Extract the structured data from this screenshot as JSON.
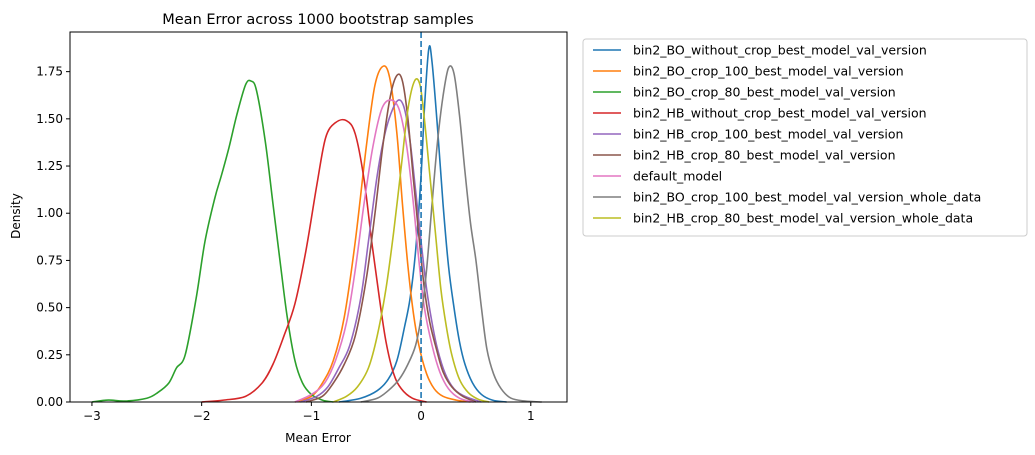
{
  "chart_data": {
    "type": "line",
    "kind": "kde",
    "title": "Mean Error across 1000 bootstrap samples",
    "xlabel": "Mean Error",
    "ylabel": "Density",
    "xlim": [
      -3.2,
      1.33
    ],
    "ylim": [
      0,
      1.96
    ],
    "xticks": [
      -3,
      -2,
      -1,
      0,
      1
    ],
    "xtick_labels": [
      "−3",
      "−2",
      "−1",
      "0",
      "1"
    ],
    "yticks": [
      0,
      0.25,
      0.5,
      0.75,
      1.0,
      1.25,
      1.5,
      1.75
    ],
    "ytick_labels": [
      "0.00",
      "0.25",
      "0.50",
      "0.75",
      "1.00",
      "1.25",
      "1.50",
      "1.75"
    ],
    "legend_position": "outside-right",
    "reference_line": {
      "x": 0,
      "style": "dashed",
      "color": "#1f77b4"
    },
    "series": [
      {
        "name": "bin2_BO_without_crop_best_model_val_version",
        "color": "#1f77b4",
        "points": [
          [
            -0.75,
            0
          ],
          [
            -0.55,
            0.02
          ],
          [
            -0.4,
            0.06
          ],
          [
            -0.3,
            0.12
          ],
          [
            -0.22,
            0.22
          ],
          [
            -0.15,
            0.4
          ],
          [
            -0.1,
            0.55
          ],
          [
            -0.05,
            0.8
          ],
          [
            0,
            1.2
          ],
          [
            0.03,
            1.55
          ],
          [
            0.07,
            1.87
          ],
          [
            0.1,
            1.8
          ],
          [
            0.15,
            1.45
          ],
          [
            0.2,
            1.05
          ],
          [
            0.25,
            0.72
          ],
          [
            0.3,
            0.5
          ],
          [
            0.35,
            0.32
          ],
          [
            0.4,
            0.2
          ],
          [
            0.47,
            0.1
          ],
          [
            0.55,
            0.04
          ],
          [
            0.65,
            0.01
          ],
          [
            0.78,
            0
          ]
        ]
      },
      {
        "name": "bin2_BO_crop_100_best_model_val_version",
        "color": "#ff7f0e",
        "points": [
          [
            -1.15,
            0
          ],
          [
            -1.0,
            0.03
          ],
          [
            -0.9,
            0.1
          ],
          [
            -0.8,
            0.22
          ],
          [
            -0.7,
            0.45
          ],
          [
            -0.6,
            0.85
          ],
          [
            -0.5,
            1.35
          ],
          [
            -0.42,
            1.68
          ],
          [
            -0.34,
            1.78
          ],
          [
            -0.28,
            1.7
          ],
          [
            -0.22,
            1.42
          ],
          [
            -0.17,
            1.05
          ],
          [
            -0.12,
            0.72
          ],
          [
            -0.07,
            0.47
          ],
          [
            -0.02,
            0.3
          ],
          [
            0.05,
            0.15
          ],
          [
            0.12,
            0.07
          ],
          [
            0.2,
            0.03
          ],
          [
            0.32,
            0.01
          ],
          [
            0.45,
            0
          ]
        ]
      },
      {
        "name": "bin2_BO_crop_80_best_model_val_version",
        "color": "#2ca02c",
        "points": [
          [
            -3.0,
            0
          ],
          [
            -2.85,
            0.01
          ],
          [
            -2.7,
            0.005
          ],
          [
            -2.5,
            0.02
          ],
          [
            -2.4,
            0.05
          ],
          [
            -2.3,
            0.1
          ],
          [
            -2.23,
            0.18
          ],
          [
            -2.15,
            0.25
          ],
          [
            -2.05,
            0.55
          ],
          [
            -1.97,
            0.85
          ],
          [
            -1.88,
            1.08
          ],
          [
            -1.82,
            1.2
          ],
          [
            -1.75,
            1.35
          ],
          [
            -1.68,
            1.52
          ],
          [
            -1.6,
            1.68
          ],
          [
            -1.55,
            1.7
          ],
          [
            -1.5,
            1.65
          ],
          [
            -1.42,
            1.38
          ],
          [
            -1.35,
            1.05
          ],
          [
            -1.28,
            0.72
          ],
          [
            -1.22,
            0.45
          ],
          [
            -1.15,
            0.22
          ],
          [
            -1.08,
            0.1
          ],
          [
            -1.0,
            0.04
          ],
          [
            -0.9,
            0.01
          ],
          [
            -0.8,
            0
          ]
        ]
      },
      {
        "name": "bin2_HB_without_crop_best_model_val_version",
        "color": "#d62728",
        "points": [
          [
            -2.0,
            0
          ],
          [
            -1.8,
            0.01
          ],
          [
            -1.6,
            0.03
          ],
          [
            -1.45,
            0.1
          ],
          [
            -1.35,
            0.2
          ],
          [
            -1.25,
            0.35
          ],
          [
            -1.15,
            0.52
          ],
          [
            -1.05,
            0.8
          ],
          [
            -0.95,
            1.15
          ],
          [
            -0.87,
            1.4
          ],
          [
            -0.78,
            1.48
          ],
          [
            -0.68,
            1.49
          ],
          [
            -0.6,
            1.42
          ],
          [
            -0.52,
            1.18
          ],
          [
            -0.45,
            0.85
          ],
          [
            -0.38,
            0.55
          ],
          [
            -0.32,
            0.32
          ],
          [
            -0.25,
            0.15
          ],
          [
            -0.18,
            0.07
          ],
          [
            -0.08,
            0.02
          ],
          [
            0.05,
            0
          ]
        ]
      },
      {
        "name": "bin2_HB_crop_100_best_model_val_version",
        "color": "#9467bd",
        "points": [
          [
            -1.1,
            0
          ],
          [
            -0.95,
            0.03
          ],
          [
            -0.85,
            0.08
          ],
          [
            -0.75,
            0.18
          ],
          [
            -0.65,
            0.3
          ],
          [
            -0.55,
            0.55
          ],
          [
            -0.48,
            0.85
          ],
          [
            -0.4,
            1.2
          ],
          [
            -0.33,
            1.42
          ],
          [
            -0.26,
            1.55
          ],
          [
            -0.2,
            1.6
          ],
          [
            -0.15,
            1.55
          ],
          [
            -0.1,
            1.38
          ],
          [
            -0.05,
            1.12
          ],
          [
            0,
            0.85
          ],
          [
            0.05,
            0.6
          ],
          [
            0.1,
            0.42
          ],
          [
            0.15,
            0.28
          ],
          [
            0.22,
            0.15
          ],
          [
            0.3,
            0.07
          ],
          [
            0.4,
            0.03
          ],
          [
            0.55,
            0
          ]
        ]
      },
      {
        "name": "bin2_HB_crop_80_best_model_val_version",
        "color": "#8c564b",
        "points": [
          [
            -1.05,
            0
          ],
          [
            -0.9,
            0.03
          ],
          [
            -0.8,
            0.1
          ],
          [
            -0.7,
            0.2
          ],
          [
            -0.6,
            0.35
          ],
          [
            -0.5,
            0.65
          ],
          [
            -0.42,
            1.0
          ],
          [
            -0.35,
            1.35
          ],
          [
            -0.28,
            1.62
          ],
          [
            -0.22,
            1.73
          ],
          [
            -0.17,
            1.7
          ],
          [
            -0.12,
            1.5
          ],
          [
            -0.07,
            1.18
          ],
          [
            -0.02,
            0.88
          ],
          [
            0.03,
            0.6
          ],
          [
            0.08,
            0.42
          ],
          [
            0.14,
            0.28
          ],
          [
            0.2,
            0.16
          ],
          [
            0.28,
            0.08
          ],
          [
            0.38,
            0.03
          ],
          [
            0.5,
            0
          ]
        ]
      },
      {
        "name": "default_model",
        "color": "#e377c2",
        "points": [
          [
            -1.15,
            0
          ],
          [
            -1.0,
            0.04
          ],
          [
            -0.88,
            0.1
          ],
          [
            -0.78,
            0.22
          ],
          [
            -0.68,
            0.42
          ],
          [
            -0.6,
            0.7
          ],
          [
            -0.52,
            1.05
          ],
          [
            -0.44,
            1.35
          ],
          [
            -0.36,
            1.55
          ],
          [
            -0.28,
            1.6
          ],
          [
            -0.2,
            1.55
          ],
          [
            -0.13,
            1.35
          ],
          [
            -0.07,
            1.05
          ],
          [
            -0.02,
            0.75
          ],
          [
            0.03,
            0.5
          ],
          [
            0.1,
            0.3
          ],
          [
            0.17,
            0.16
          ],
          [
            0.25,
            0.07
          ],
          [
            0.35,
            0.02
          ],
          [
            0.48,
            0
          ]
        ]
      },
      {
        "name": "bin2_BO_crop_100_best_model_val_version_whole_data",
        "color": "#7f7f7f",
        "points": [
          [
            -0.55,
            0
          ],
          [
            -0.4,
            0.02
          ],
          [
            -0.3,
            0.06
          ],
          [
            -0.2,
            0.12
          ],
          [
            -0.12,
            0.2
          ],
          [
            -0.05,
            0.3
          ],
          [
            0,
            0.45
          ],
          [
            0.05,
            0.7
          ],
          [
            0.1,
            1.05
          ],
          [
            0.15,
            1.38
          ],
          [
            0.2,
            1.62
          ],
          [
            0.25,
            1.77
          ],
          [
            0.3,
            1.74
          ],
          [
            0.35,
            1.52
          ],
          [
            0.4,
            1.22
          ],
          [
            0.45,
            0.95
          ],
          [
            0.5,
            0.75
          ],
          [
            0.55,
            0.5
          ],
          [
            0.6,
            0.28
          ],
          [
            0.66,
            0.15
          ],
          [
            0.73,
            0.07
          ],
          [
            0.82,
            0.02
          ],
          [
            0.95,
            0.005
          ],
          [
            1.1,
            0
          ]
        ]
      },
      {
        "name": "bin2_HB_crop_80_best_model_val_version_whole_data",
        "color": "#bcbd22",
        "points": [
          [
            -0.8,
            0
          ],
          [
            -0.68,
            0.03
          ],
          [
            -0.58,
            0.08
          ],
          [
            -0.48,
            0.18
          ],
          [
            -0.4,
            0.35
          ],
          [
            -0.32,
            0.6
          ],
          [
            -0.25,
            0.9
          ],
          [
            -0.18,
            1.25
          ],
          [
            -0.12,
            1.55
          ],
          [
            -0.06,
            1.7
          ],
          [
            -0.01,
            1.68
          ],
          [
            0.03,
            1.5
          ],
          [
            0.08,
            1.2
          ],
          [
            0.13,
            0.9
          ],
          [
            0.18,
            0.6
          ],
          [
            0.23,
            0.4
          ],
          [
            0.28,
            0.25
          ],
          [
            0.35,
            0.12
          ],
          [
            0.43,
            0.05
          ],
          [
            0.52,
            0.015
          ],
          [
            0.62,
            0
          ]
        ]
      }
    ]
  }
}
